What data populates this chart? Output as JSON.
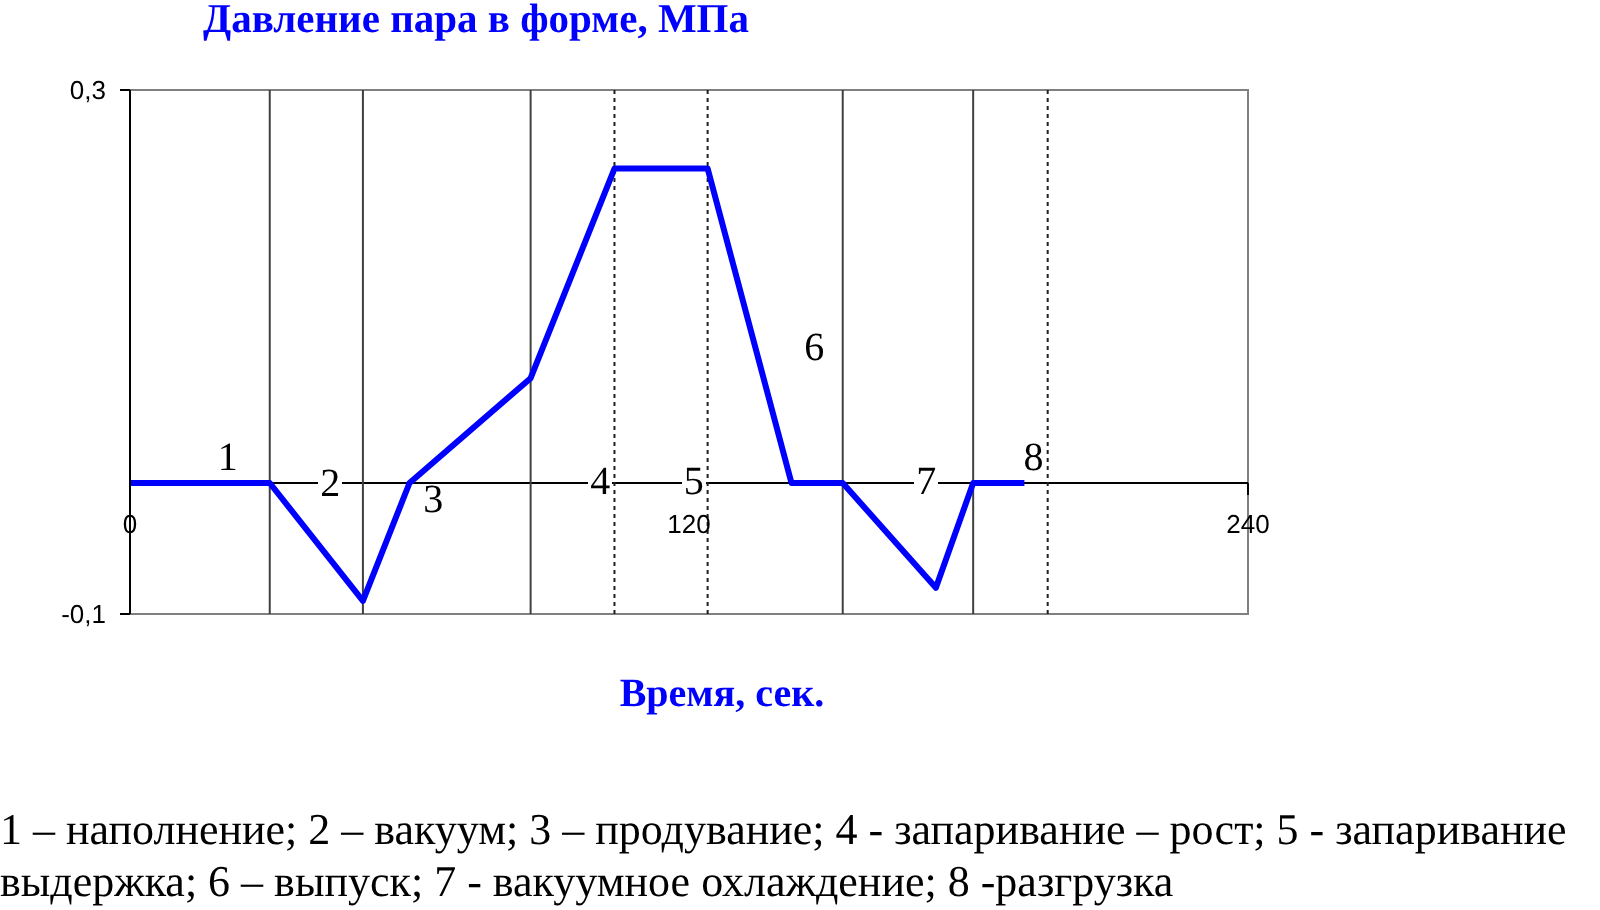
{
  "chart_data": {
    "type": "line",
    "ylabel": "Давление пара в форме, МПа",
    "xlabel": "Время, сек.",
    "x": [
      0,
      30,
      50,
      60,
      86,
      104,
      124,
      142,
      153,
      173,
      181,
      192
    ],
    "series": [
      {
        "color": "#0000ff",
        "values": [
          0,
          0,
          -0.09,
          0,
          0.08,
          0.24,
          0.24,
          0,
          0,
          -0.08,
          0,
          0
        ]
      }
    ],
    "xlim": [
      0,
      240
    ],
    "xticks": [
      0,
      120,
      240
    ],
    "ylim": [
      -0.1,
      0.3
    ],
    "yticks": [
      {
        "value": -0.1,
        "label": "-0,1"
      },
      {
        "value": 0.3,
        "label": "0,3"
      }
    ],
    "marker": "none",
    "line_style": "solid",
    "ref_lines": [
      {
        "axis": "x",
        "value": 30,
        "color": "#404040",
        "line_style": "solid"
      },
      {
        "axis": "x",
        "value": 50,
        "color": "#404040",
        "line_style": "solid"
      },
      {
        "axis": "x",
        "value": 86,
        "color": "#404040",
        "line_style": "solid"
      },
      {
        "axis": "x",
        "value": 104,
        "color": "#202020",
        "line_style": "dotted"
      },
      {
        "axis": "x",
        "value": 124,
        "color": "#202020",
        "line_style": "dotted"
      },
      {
        "axis": "x",
        "value": 153,
        "color": "#404040",
        "line_style": "solid"
      },
      {
        "axis": "x",
        "value": 181,
        "color": "#404040",
        "line_style": "solid"
      },
      {
        "axis": "x",
        "value": 197,
        "color": "#202020",
        "line_style": "dotted"
      }
    ],
    "annotations": [
      "1",
      "2",
      "3",
      "4",
      "5",
      "6",
      "7",
      "8",
      "1 – наполнение; 2 – вакуум; 3 – продувание; 4 - запаривание – рост; 5 - запаривание выдержка; 6 – выпуск; 7 - вакуумное охлаждение; 8 -разгрузка"
    ]
  }
}
